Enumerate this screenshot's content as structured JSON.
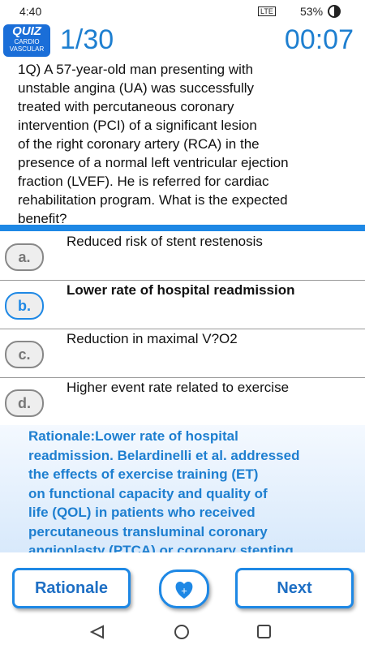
{
  "status_bar": {
    "time": "4:40",
    "network": "LTE",
    "battery": "53%"
  },
  "header": {
    "logo_title": "QUIZ",
    "logo_line1": "CARDIO",
    "logo_line2": "VASCULAR",
    "counter": "1/30",
    "timer": "00:07"
  },
  "question": {
    "lines": [
      "1Q) A 57-year-old man presenting with",
      "unstable angina (UA) was successfully",
      "treated with percutaneous coronary",
      "intervention (PCI) of a significant lesion",
      "of the right coronary artery (RCA) in the",
      "presence of a normal left ventricular ejection",
      "fraction (LVEF). He is referred for cardiac",
      "rehabilitation program. What is the expected",
      "benefit?"
    ]
  },
  "options": [
    {
      "letter": "a.",
      "text": "Reduced risk of stent restenosis"
    },
    {
      "letter": "b.",
      "text": "Lower rate of hospital readmission"
    },
    {
      "letter": "c.",
      "text": "Reduction in maximal V?O2"
    },
    {
      "letter": "d.",
      "text": "Higher event rate related to exercise"
    }
  ],
  "rationale": {
    "lines": [
      "Rationale:Lower rate of hospital",
      "readmission. Belardinelli et al. addressed",
      "the effects of exercise training (ET)",
      "on functional capacity and quality of",
      "life (QOL) in patients who received",
      "percutaneous transluminal coronary",
      "angioplasty (PTCA) or coronary stenting"
    ]
  },
  "buttons": {
    "rationale": "Rationale",
    "favorite": "+",
    "next": "Next"
  }
}
